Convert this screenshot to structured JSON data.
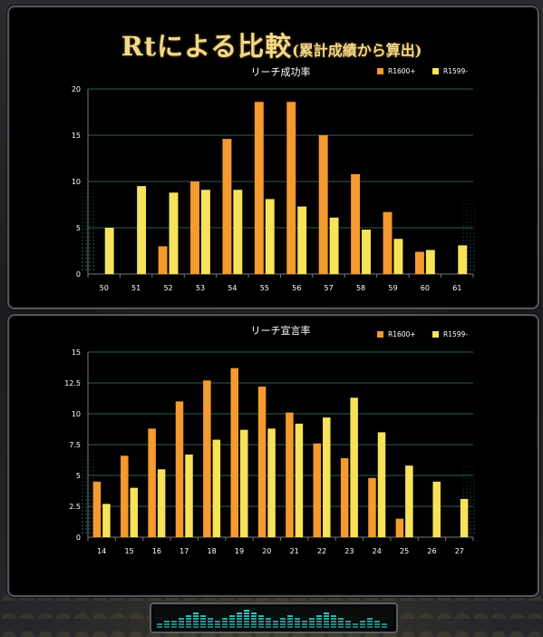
{
  "page": {
    "title_main": "Rtによる比較",
    "title_sub": "(累計成績から算出)"
  },
  "colors": {
    "r1600": "#f59a2e",
    "r1599": "#f6e35a",
    "grid": "#2f5c52",
    "background": "#000000",
    "text": "#ffffff"
  },
  "chart_data": [
    {
      "type": "bar",
      "title": "リーチ成功率",
      "categories": [
        "50",
        "51",
        "52",
        "53",
        "54",
        "55",
        "56",
        "57",
        "58",
        "59",
        "60",
        "61"
      ],
      "series": [
        {
          "name": "R1600+",
          "values": [
            0,
            0,
            3.0,
            10.0,
            14.6,
            18.6,
            18.6,
            15.0,
            10.8,
            6.7,
            2.4,
            0
          ]
        },
        {
          "name": "R1599-",
          "values": [
            5.0,
            9.5,
            8.8,
            9.1,
            9.1,
            8.1,
            7.3,
            6.1,
            4.8,
            3.8,
            2.6,
            3.1
          ]
        }
      ],
      "y_ticks": [
        "0",
        "5",
        "10",
        "15",
        "20"
      ],
      "ylim": [
        0,
        20
      ],
      "legend": "top-right",
      "grid": true
    },
    {
      "type": "bar",
      "title": "リーチ宣言率",
      "categories": [
        "14",
        "15",
        "16",
        "17",
        "18",
        "19",
        "20",
        "21",
        "22",
        "23",
        "24",
        "25",
        "26",
        "27"
      ],
      "series": [
        {
          "name": "R1600+",
          "values": [
            4.5,
            6.6,
            8.8,
            11.0,
            12.7,
            13.7,
            12.2,
            10.1,
            7.6,
            6.4,
            4.8,
            1.5,
            0,
            0
          ]
        },
        {
          "name": "R1599-",
          "values": [
            2.7,
            4.0,
            5.5,
            6.7,
            7.9,
            8.7,
            8.8,
            9.2,
            9.7,
            11.3,
            8.5,
            5.8,
            4.5,
            3.1
          ]
        }
      ],
      "y_ticks": [
        "0",
        "2.5",
        "5",
        "7.5",
        "10",
        "12.5",
        "15"
      ],
      "ylim": [
        0,
        15
      ],
      "legend": "top-right",
      "grid": true
    }
  ],
  "meter": {
    "levels": [
      2,
      3,
      3,
      4,
      5,
      6,
      5,
      4,
      3,
      4,
      5,
      6,
      7,
      6,
      5,
      4,
      3,
      4,
      5,
      4,
      3,
      4,
      5,
      6,
      5,
      4,
      3,
      2,
      3,
      4,
      3,
      2
    ]
  }
}
